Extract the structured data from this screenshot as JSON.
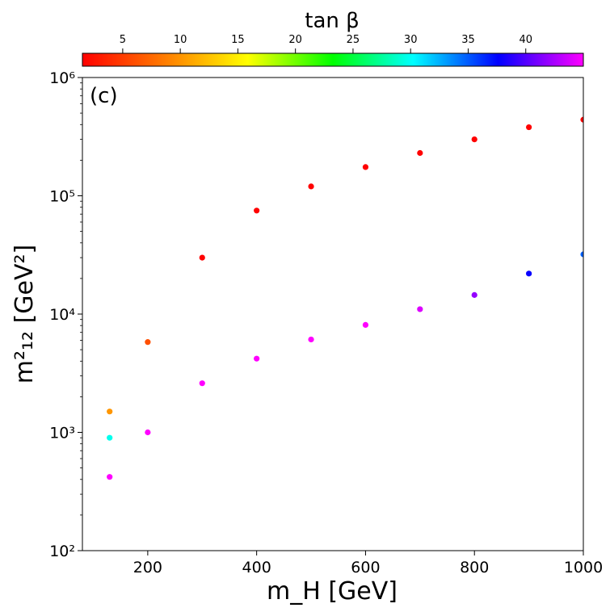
{
  "chart_data": {
    "type": "scatter",
    "panel_label": "(c)",
    "xlabel": "m_H [GeV]",
    "ylabel": "m²₁₂ [GeV²]",
    "x_scale": "linear",
    "y_scale": "log",
    "xlim": [
      80,
      1000
    ],
    "ylim": [
      100,
      1000000
    ],
    "x_ticks": [
      200,
      400,
      600,
      800,
      1000
    ],
    "y_ticks": [
      100,
      1000,
      10000,
      100000,
      1000000
    ],
    "y_tick_labels": [
      "10²",
      "10³",
      "10⁴",
      "10⁵",
      "10⁶"
    ],
    "colorbar": {
      "label": "tan β",
      "range": [
        1.5,
        45
      ],
      "ticks": [
        5,
        10,
        15,
        20,
        25,
        30,
        35,
        40
      ],
      "colormap": "gist_rainbow",
      "colors": [
        "#ff0000",
        "#ff8000",
        "#ffff00",
        "#00ff00",
        "#00ffff",
        "#0000ff",
        "#ff00ff"
      ]
    },
    "points": [
      {
        "x": 130,
        "y": 420,
        "c": 45
      },
      {
        "x": 130,
        "y": 900,
        "c": 30
      },
      {
        "x": 130,
        "y": 1500,
        "c": 10
      },
      {
        "x": 200,
        "y": 1000,
        "c": 45
      },
      {
        "x": 200,
        "y": 5800,
        "c": 6
      },
      {
        "x": 300,
        "y": 2600,
        "c": 45
      },
      {
        "x": 300,
        "y": 30000,
        "c": 1.5
      },
      {
        "x": 400,
        "y": 4200,
        "c": 45
      },
      {
        "x": 400,
        "y": 75000,
        "c": 1.5
      },
      {
        "x": 500,
        "y": 6100,
        "c": 45
      },
      {
        "x": 500,
        "y": 120000,
        "c": 1.5
      },
      {
        "x": 600,
        "y": 8100,
        "c": 45
      },
      {
        "x": 600,
        "y": 175000,
        "c": 1.5
      },
      {
        "x": 700,
        "y": 11000,
        "c": 44
      },
      {
        "x": 700,
        "y": 230000,
        "c": 1.5
      },
      {
        "x": 800,
        "y": 14500,
        "c": 42
      },
      {
        "x": 800,
        "y": 300000,
        "c": 1.5
      },
      {
        "x": 900,
        "y": 22000,
        "c": 38
      },
      {
        "x": 900,
        "y": 380000,
        "c": 1.5
      },
      {
        "x": 1000,
        "y": 32000,
        "c": 35
      },
      {
        "x": 1000,
        "y": 440000,
        "c": 1.5
      }
    ]
  }
}
